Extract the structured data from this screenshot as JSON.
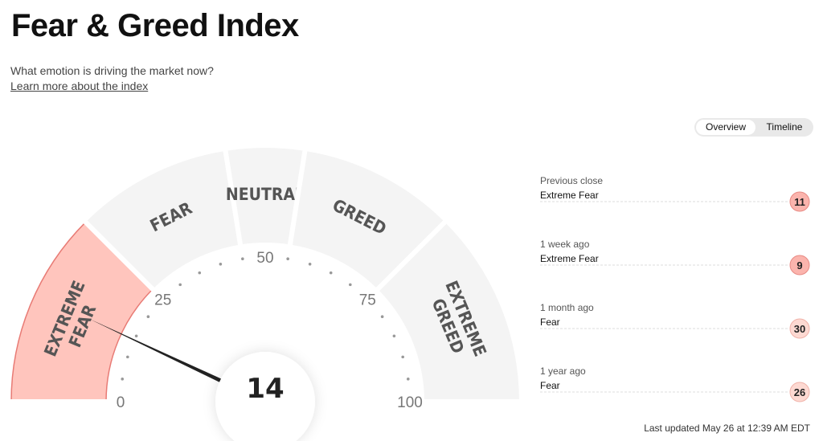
{
  "header": {
    "title": "Fear & Greed Index",
    "subtitle": "What emotion is driving the market now?",
    "link": "Learn more about the index"
  },
  "tabs": [
    "Overview",
    "Timeline"
  ],
  "gauge": {
    "value": 14,
    "ticks": [
      0,
      25,
      50,
      75,
      100
    ],
    "segments": [
      {
        "lines": [
          "EXTREME",
          "FEAR"
        ],
        "from": 0,
        "to": 25,
        "active": true
      },
      {
        "lines": [
          "FEAR"
        ],
        "from": 25,
        "to": 45,
        "active": false
      },
      {
        "lines": [
          "NEUTRAL"
        ],
        "from": 45,
        "to": 55,
        "active": false
      },
      {
        "lines": [
          "GREED"
        ],
        "from": 55,
        "to": 75,
        "active": false
      },
      {
        "lines": [
          "EXTREME",
          "GREED"
        ],
        "from": 75,
        "to": 100,
        "active": false
      }
    ]
  },
  "history": [
    {
      "period": "Previous close",
      "rating": "Extreme Fear",
      "value": 11
    },
    {
      "period": "1 week ago",
      "rating": "Extreme Fear",
      "value": 9
    },
    {
      "period": "1 month ago",
      "rating": "Fear",
      "value": 30
    },
    {
      "period": "1 year ago",
      "rating": "Fear",
      "value": 26
    }
  ],
  "footer": "Last updated May 26 at 12:39 AM EDT"
}
